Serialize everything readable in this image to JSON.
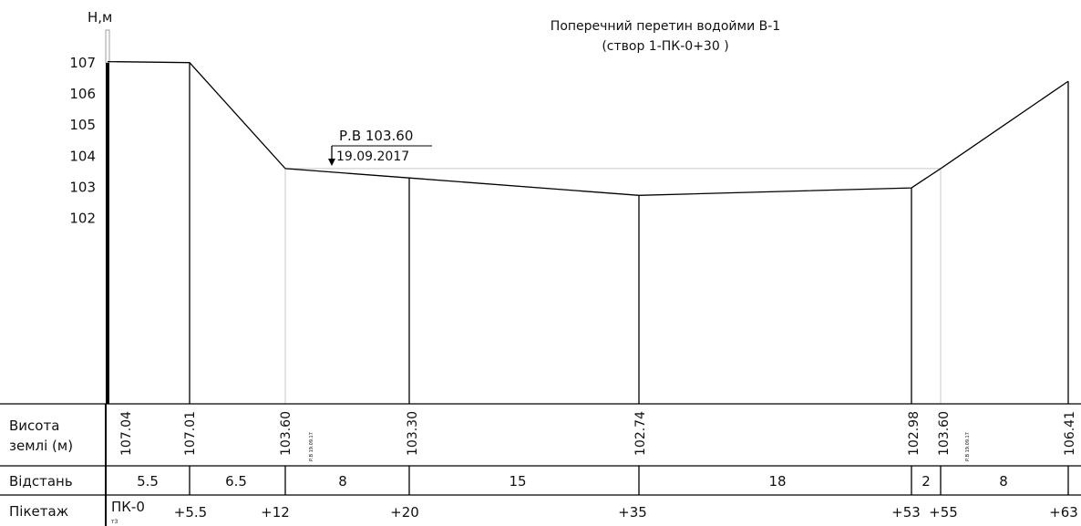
{
  "title": {
    "line1": "Поперечний перетин водойми В-1",
    "line2": "(створ 1-ПК-0+30 )"
  },
  "axis": {
    "y_label": "Н,м",
    "ticks": [
      "107",
      "106",
      "105",
      "104",
      "103",
      "102"
    ]
  },
  "water_level": {
    "label": "Р.В 103.60",
    "date": "19.09.2017",
    "mini_label": "Р.В 19.09.17"
  },
  "table": {
    "row_heights_label_1": "Висота",
    "row_heights_label_2": "землі (м)",
    "row_distance_label": "Відстань",
    "row_station_label": "Пікетаж",
    "heights": [
      "107.04",
      "107.01",
      "103.60",
      "103.30",
      "102.74",
      "102.98",
      "103.60",
      "106.41"
    ],
    "distances": [
      "5.5",
      "6.5",
      "8",
      "15",
      "18",
      "2",
      "8"
    ],
    "stations": [
      "ПК-0",
      "+5.5",
      "+12",
      "+20",
      "+35",
      "+53",
      "+55",
      "+63"
    ],
    "station_sub": "т3"
  },
  "chart_data": {
    "type": "line",
    "title": "Поперечний перетин водойми В-1 (створ 1-ПК-0+30 )",
    "ylabel": "Н,м",
    "ylim": [
      101.5,
      107.2
    ],
    "y_ticks": [
      102,
      103,
      104,
      105,
      106,
      107
    ],
    "series": [
      {
        "x": [
          0,
          5.5,
          12,
          20,
          35,
          53,
          55,
          63
        ],
        "values": [
          107.04,
          107.01,
          103.6,
          103.3,
          102.74,
          102.98,
          103.6,
          106.41
        ]
      }
    ],
    "water_level": 103.6,
    "water_level_x": [
      12,
      55
    ]
  }
}
